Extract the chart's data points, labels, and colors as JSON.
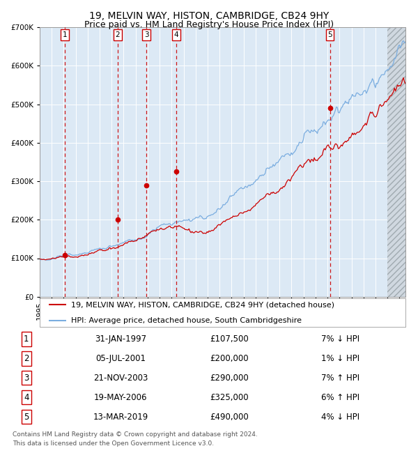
{
  "title": "19, MELVIN WAY, HISTON, CAMBRIDGE, CB24 9HY",
  "subtitle": "Price paid vs. HM Land Registry's House Price Index (HPI)",
  "ylim": [
    0,
    700000
  ],
  "yticks": [
    0,
    100000,
    200000,
    300000,
    400000,
    500000,
    600000,
    700000
  ],
  "ytick_labels": [
    "£0",
    "£100K",
    "£200K",
    "£300K",
    "£400K",
    "£500K",
    "£600K",
    "£700K"
  ],
  "xlim_start": 1995.0,
  "xlim_end": 2025.5,
  "plot_bg_color": "#dce9f5",
  "grid_color": "#ffffff",
  "red_line_color": "#cc0000",
  "blue_line_color": "#7aade0",
  "dashed_vline_color": "#cc0000",
  "sale_marker_color": "#cc0000",
  "title_fontsize": 10,
  "subtitle_fontsize": 9,
  "tick_fontsize": 7.5,
  "legend_fontsize": 8,
  "footer_fontsize": 6.5,
  "purchases": [
    {
      "num": 1,
      "date_year": 1997.08,
      "price": 107500
    },
    {
      "num": 2,
      "date_year": 2001.5,
      "price": 200000
    },
    {
      "num": 3,
      "date_year": 2003.9,
      "price": 290000
    },
    {
      "num": 4,
      "date_year": 2006.38,
      "price": 325000
    },
    {
      "num": 5,
      "date_year": 2019.2,
      "price": 490000
    }
  ],
  "legend_line1": "19, MELVIN WAY, HISTON, CAMBRIDGE, CB24 9HY (detached house)",
  "legend_line2": "HPI: Average price, detached house, South Cambridgeshire",
  "footer_line1": "Contains HM Land Registry data © Crown copyright and database right 2024.",
  "footer_line2": "This data is licensed under the Open Government Licence v3.0.",
  "table_rows": [
    {
      "num": 1,
      "date": "31-JAN-1997",
      "price": "£107,500",
      "pct": "7% ↓ HPI"
    },
    {
      "num": 2,
      "date": "05-JUL-2001",
      "price": "£200,000",
      "pct": "1% ↓ HPI"
    },
    {
      "num": 3,
      "date": "21-NOV-2003",
      "price": "£290,000",
      "pct": "7% ↑ HPI"
    },
    {
      "num": 4,
      "date": "19-MAY-2006",
      "price": "£325,000",
      "pct": "6% ↑ HPI"
    },
    {
      "num": 5,
      "date": "13-MAR-2019",
      "price": "£490,000",
      "pct": "4% ↓ HPI"
    }
  ],
  "hatch_start": 2024.0
}
